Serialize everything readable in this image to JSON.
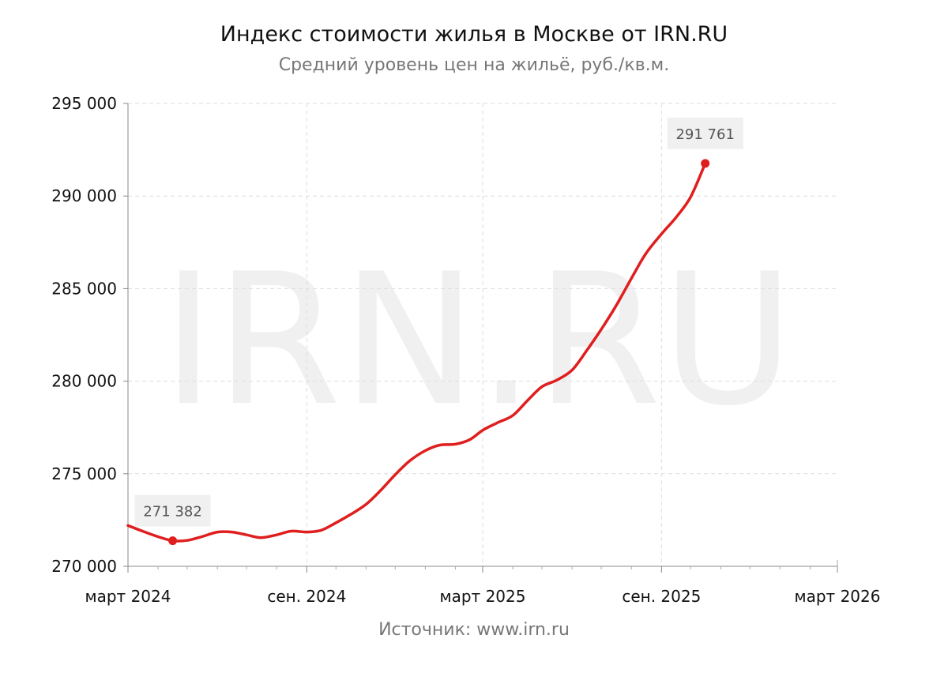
{
  "chart_data": {
    "type": "line",
    "title": "Индекс стоимости жилья в Москве от IRN.RU",
    "subtitle": "Средний уровень цен на жильё, руб./кв.м.",
    "source": "Источник: www.irn.ru",
    "watermark": "IRN.RU",
    "ylim": [
      270000,
      295000
    ],
    "y_ticks": [
      {
        "value": 270000,
        "label": "270 000"
      },
      {
        "value": 275000,
        "label": "275 000"
      },
      {
        "value": 280000,
        "label": "280 000"
      },
      {
        "value": 285000,
        "label": "285 000"
      },
      {
        "value": 290000,
        "label": "290 000"
      },
      {
        "value": 295000,
        "label": "295 000"
      }
    ],
    "x_range": [
      "2024-03-01",
      "2026-03-01"
    ],
    "x_ticks": [
      {
        "date": "2024-03-01",
        "label": "март 2024"
      },
      {
        "date": "2024-09-01",
        "label": "сен. 2024"
      },
      {
        "date": "2025-03-01",
        "label": "март 2025"
      },
      {
        "date": "2025-09-01",
        "label": "сен. 2025"
      },
      {
        "date": "2026-03-01",
        "label": "март 2026"
      }
    ],
    "minor_ticks": [
      "2024-04-01",
      "2024-05-01",
      "2024-06-01",
      "2024-07-01",
      "2024-08-01",
      "2024-10-01",
      "2024-11-01",
      "2024-12-01",
      "2025-01-01",
      "2025-02-01",
      "2025-04-01",
      "2025-05-01",
      "2025-06-01",
      "2025-07-01",
      "2025-08-01",
      "2025-10-01",
      "2025-11-01",
      "2025-12-01",
      "2026-01-01",
      "2026-02-01"
    ],
    "grid": true,
    "line_color": "#e01e1e",
    "series": [
      {
        "points": [
          {
            "x": "2024-03-01",
            "y": 272200
          },
          {
            "x": "2024-03-16",
            "y": 271900
          },
          {
            "x": "2024-04-01",
            "y": 271600
          },
          {
            "x": "2024-04-16",
            "y": 271382
          },
          {
            "x": "2024-05-01",
            "y": 271400
          },
          {
            "x": "2024-05-16",
            "y": 271600
          },
          {
            "x": "2024-06-01",
            "y": 271850
          },
          {
            "x": "2024-06-16",
            "y": 271850
          },
          {
            "x": "2024-07-01",
            "y": 271700
          },
          {
            "x": "2024-07-16",
            "y": 271550
          },
          {
            "x": "2024-08-01",
            "y": 271700
          },
          {
            "x": "2024-08-16",
            "y": 271900
          },
          {
            "x": "2024-09-01",
            "y": 271850
          },
          {
            "x": "2024-09-16",
            "y": 271950
          },
          {
            "x": "2024-10-01",
            "y": 272350
          },
          {
            "x": "2024-10-16",
            "y": 272800
          },
          {
            "x": "2024-11-01",
            "y": 273350
          },
          {
            "x": "2024-11-16",
            "y": 274100
          },
          {
            "x": "2024-12-01",
            "y": 274950
          },
          {
            "x": "2024-12-16",
            "y": 275700
          },
          {
            "x": "2025-01-01",
            "y": 276250
          },
          {
            "x": "2025-01-16",
            "y": 276550
          },
          {
            "x": "2025-02-01",
            "y": 276600
          },
          {
            "x": "2025-02-16",
            "y": 276850
          },
          {
            "x": "2025-03-01",
            "y": 277350
          },
          {
            "x": "2025-03-16",
            "y": 277750
          },
          {
            "x": "2025-04-01",
            "y": 278150
          },
          {
            "x": "2025-04-16",
            "y": 278950
          },
          {
            "x": "2025-05-01",
            "y": 279700
          },
          {
            "x": "2025-05-16",
            "y": 280050
          },
          {
            "x": "2025-06-01",
            "y": 280600
          },
          {
            "x": "2025-06-16",
            "y": 281650
          },
          {
            "x": "2025-07-01",
            "y": 282800
          },
          {
            "x": "2025-07-16",
            "y": 284050
          },
          {
            "x": "2025-08-01",
            "y": 285550
          },
          {
            "x": "2025-08-16",
            "y": 286900
          },
          {
            "x": "2025-09-01",
            "y": 287950
          },
          {
            "x": "2025-09-16",
            "y": 288850
          },
          {
            "x": "2025-10-01",
            "y": 289950
          },
          {
            "x": "2025-10-16",
            "y": 291761
          }
        ]
      }
    ],
    "annotations": [
      {
        "x": "2024-04-16",
        "y": 271382,
        "label": "271 382"
      },
      {
        "x": "2025-10-16",
        "y": 291761,
        "label": "291 761"
      }
    ]
  }
}
